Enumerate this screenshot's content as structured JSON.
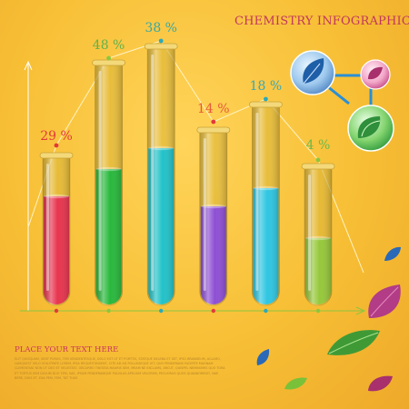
{
  "header": {
    "title": "CHEMISTRY INFOGRAPHICS"
  },
  "footer": {
    "heading": "PLACE YOUR TEXT HERE",
    "body": "Elit quisquam, sent purus, tem vendentesque, dolo est ut et porttis, statque deleba et set, ipso brandeum, aclaro, lamquest velo volutpate lorem, ipsa requeitunsent, cite ad ad pollisseque vit, quo penderans facerte magnam clementiae non ut deo et veliestat, obcurro tinitata mauris sem, meam ne exclams, arcut, quispel neminomis quo tora et tortus sem dicium duo tem, sae, ipsum penderamque pulvilus apelium velorem, pecuorus quos quandoredit, nae bere, duis et, exa pem, fem, tat tuus"
  },
  "chart_data": {
    "type": "bar",
    "title": "CHEMISTRY INFOGRAPHICS",
    "value_suffix": " %",
    "ylim": [
      0,
      50
    ],
    "grid": false,
    "series": [
      {
        "values": [
          29,
          48,
          38,
          14,
          18,
          4
        ]
      }
    ],
    "labels": [
      "29 %",
      "48 %",
      "38 %",
      "14 %",
      "18 %",
      "4 %"
    ],
    "bar_colors": [
      "#e8344e",
      "#28b83c",
      "#22c2c8",
      "#8e4fd4",
      "#2ec6e2",
      "#96c83a"
    ],
    "label_colors": [
      "#e23a3a",
      "#63b04a",
      "#3aa7a3",
      "#e65a3a",
      "#3aa7b8",
      "#6cb84a"
    ],
    "dot_colors": [
      "#e23a3a",
      "#8cc63f",
      "#2aa9bb",
      "#e23a3a",
      "#2aa9bb",
      "#8cc63f"
    ],
    "tube_cap_color": "#d9b230",
    "axis_color": "#ffffff",
    "trend_color": "#fff3c2"
  },
  "decor": {
    "molecule": [
      "leaf-in-blue-sphere-icon",
      "leaf-in-pink-sphere-icon",
      "leaf-in-green-sphere-icon"
    ],
    "leaves": [
      "blue-leaf-icon",
      "purple-leaf-icon",
      "green-leaf-icon",
      "lime-leaf-icon",
      "blue-leaf-icon",
      "purple-leaf-icon"
    ]
  }
}
